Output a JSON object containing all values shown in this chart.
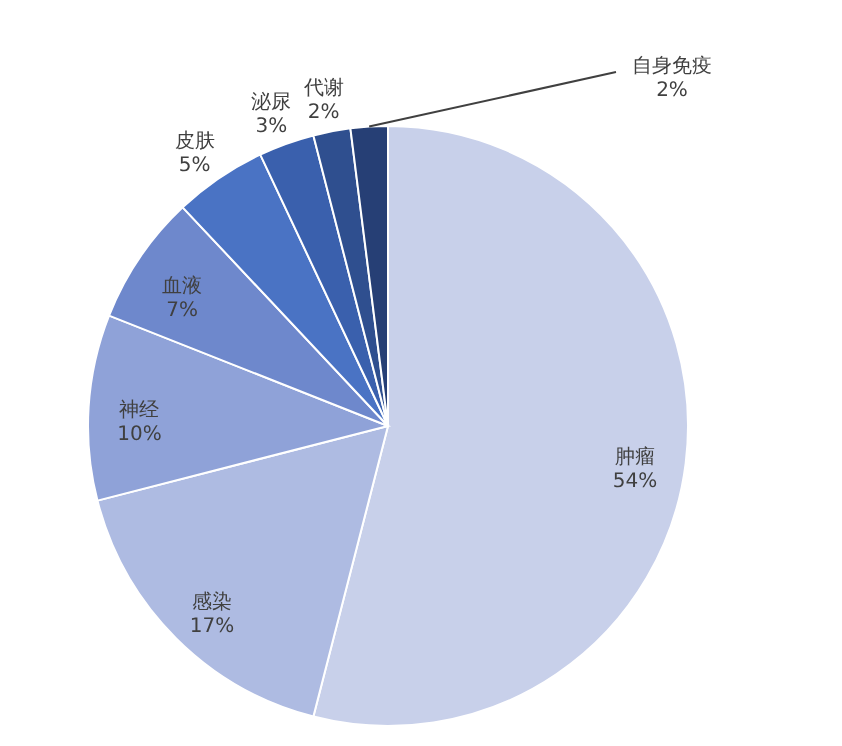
{
  "chart_data": {
    "type": "pie",
    "categories": [
      "肿瘤",
      "感染",
      "神经",
      "血液",
      "皮肤",
      "泌尿",
      "代谢",
      "自身免疫"
    ],
    "values": [
      54,
      17,
      10,
      7,
      5,
      3,
      2,
      2
    ],
    "value_labels": [
      "54%",
      "17%",
      "10%",
      "7%",
      "5%",
      "3%",
      "2%",
      "2%"
    ],
    "colors": [
      "#c8d0ea",
      "#aebbe2",
      "#8fa2d8",
      "#6e88cc",
      "#4a73c4",
      "#3a60ad",
      "#2f4f8f",
      "#263f75"
    ]
  }
}
